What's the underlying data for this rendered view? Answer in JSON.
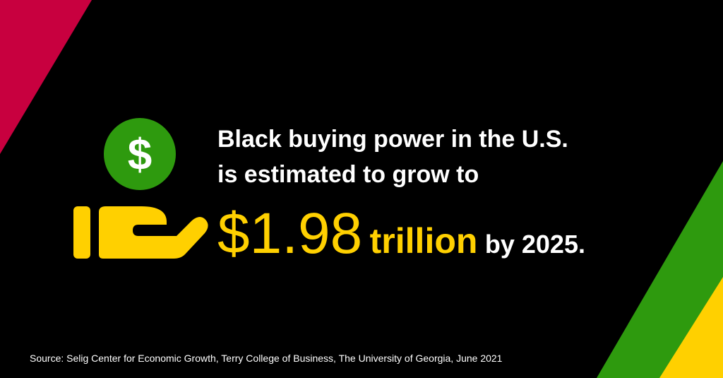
{
  "headline": {
    "line1": "Black buying power in the U.S.",
    "line2": "is estimated to grow to",
    "amount": "$1.98",
    "unit": "trillion",
    "suffix": "by 2025."
  },
  "icon": {
    "symbol": "$"
  },
  "source": "Source: Selig Center for Economic Growth, Terry College of Business, The University of Georgia, June 2021"
}
